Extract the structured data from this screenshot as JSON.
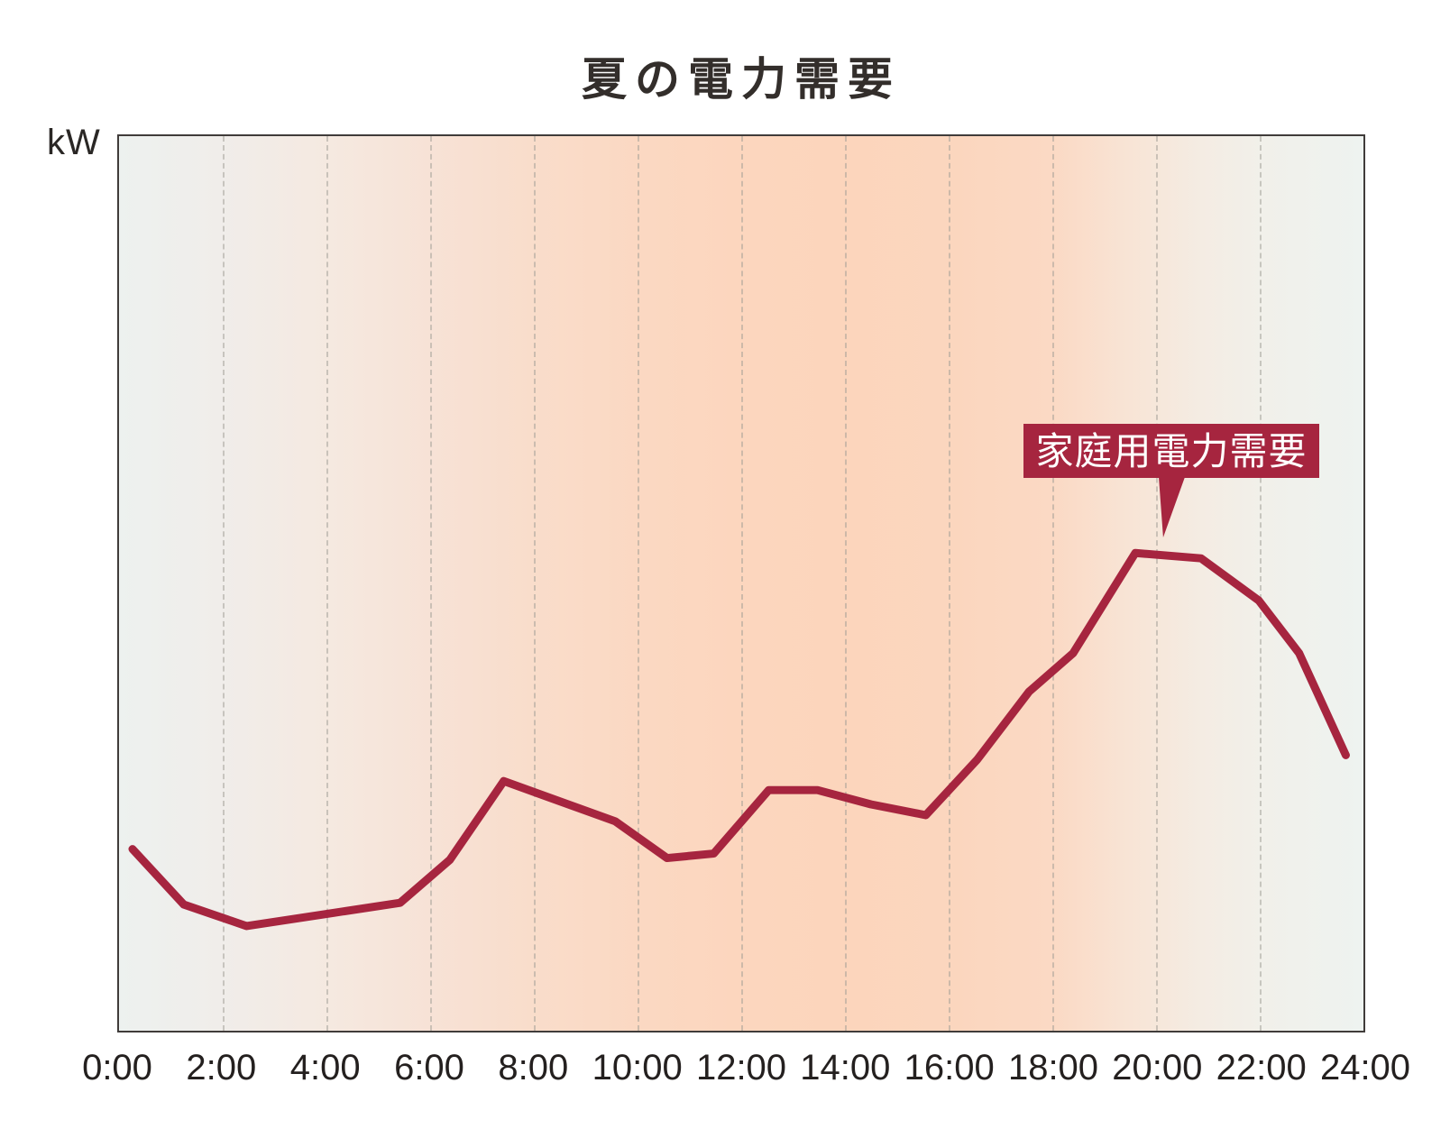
{
  "colors": {
    "accent": "#a6253f",
    "title_text": "#332e2b",
    "axis_text": "#24201f",
    "annotation_text": "#ffffff",
    "plot_border": "#403c3a",
    "gridline": "rgba(158,155,148,0.5)"
  },
  "chart_data": {
    "type": "line",
    "title": "夏の電力需要",
    "ylabel": "kW",
    "xlabel": "",
    "x_range_hours": [
      0,
      24
    ],
    "x_ticks": [
      "0:00",
      "2:00",
      "4:00",
      "6:00",
      "8:00",
      "10:00",
      "12:00",
      "14:00",
      "16:00",
      "18:00",
      "20:00",
      "22:00",
      "24:00"
    ],
    "grid": "vertical dashed lines every 2 hours; no horizontal gridlines; no numeric y-axis scale shown",
    "legend_position": "callout label inside plot pointing at evening peak",
    "series": [
      {
        "name": "家庭用電力需要",
        "points": [
          {
            "t": 0.26,
            "v": 20.3
          },
          {
            "t": 1.25,
            "v": 14.1
          },
          {
            "t": 2.46,
            "v": 11.7
          },
          {
            "t": 5.42,
            "v": 14.3
          },
          {
            "t": 6.38,
            "v": 19.1
          },
          {
            "t": 7.42,
            "v": 27.9
          },
          {
            "t": 9.57,
            "v": 23.4
          },
          {
            "t": 10.57,
            "v": 19.3
          },
          {
            "t": 11.47,
            "v": 19.8
          },
          {
            "t": 12.53,
            "v": 26.9
          },
          {
            "t": 13.47,
            "v": 26.9
          },
          {
            "t": 14.5,
            "v": 25.3
          },
          {
            "t": 15.56,
            "v": 24.1
          },
          {
            "t": 16.55,
            "v": 30.3
          },
          {
            "t": 17.55,
            "v": 37.9
          },
          {
            "t": 18.4,
            "v": 42.2
          },
          {
            "t": 19.6,
            "v": 53.4
          },
          {
            "t": 20.87,
            "v": 52.8
          },
          {
            "t": 21.98,
            "v": 48.1
          },
          {
            "t": 22.76,
            "v": 42.2
          },
          {
            "t": 23.66,
            "v": 30.8
          }
        ],
        "value_unit": "relative demand, % of plot height (no numeric kW scale shown)"
      }
    ],
    "annotation": {
      "label": "家庭用電力需要",
      "points_at_hour": 20.1
    }
  }
}
